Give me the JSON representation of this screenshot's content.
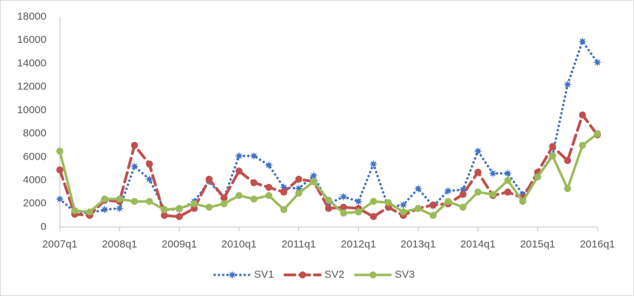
{
  "chart_data": {
    "type": "line",
    "categories": [
      "2007q1",
      null,
      null,
      null,
      "2008q1",
      null,
      null,
      null,
      "2009q1",
      null,
      null,
      null,
      "2010q1",
      null,
      null,
      null,
      "2011q1",
      null,
      null,
      null,
      "2012q1",
      null,
      null,
      null,
      "2013q1",
      null,
      null,
      null,
      "2014q1",
      null,
      null,
      null,
      "2015q1",
      null,
      null,
      null,
      "2016q1"
    ],
    "ylim": [
      0,
      18000
    ],
    "yticks": [
      0,
      2000,
      4000,
      6000,
      8000,
      10000,
      12000,
      14000,
      16000,
      18000
    ],
    "grid": false,
    "legend": "bottom",
    "series": [
      {
        "name": "SV1",
        "color": "#4472c4",
        "dash": "dotted",
        "marker": "star",
        "values": [
          2400,
          1300,
          1200,
          1500,
          1600,
          5200,
          4100,
          1500,
          1500,
          2200,
          3900,
          2500,
          6100,
          6100,
          5300,
          3400,
          3300,
          4400,
          2000,
          2600,
          2200,
          5400,
          1700,
          1900,
          3300,
          1800,
          3100,
          3200,
          6500,
          4600,
          4600,
          2800,
          4300,
          6200,
          12200,
          15900,
          14100
        ]
      },
      {
        "name": "SV2",
        "color": "#c0504d",
        "dash": "dashed",
        "marker": "circle",
        "values": [
          4900,
          1100,
          1000,
          2300,
          2200,
          7000,
          5400,
          1000,
          900,
          1600,
          4100,
          2500,
          4800,
          3800,
          3400,
          3000,
          4100,
          3900,
          1600,
          1700,
          1600,
          900,
          1700,
          1000,
          1600,
          1900,
          2000,
          2800,
          4700,
          2700,
          3000,
          2500,
          4700,
          6900,
          5700,
          9600,
          7900
        ]
      },
      {
        "name": "SV3",
        "color": "#9bbb59",
        "dash": "solid",
        "marker": "circle",
        "values": [
          6500,
          1400,
          1300,
          2400,
          2400,
          2200,
          2200,
          1500,
          1600,
          2000,
          1700,
          2000,
          2700,
          2400,
          2700,
          1500,
          2900,
          3900,
          2300,
          1200,
          1300,
          2200,
          2100,
          1300,
          1600,
          1000,
          2200,
          1700,
          3000,
          2800,
          4000,
          2200,
          4300,
          6100,
          3300,
          7000,
          8000
        ]
      }
    ]
  }
}
